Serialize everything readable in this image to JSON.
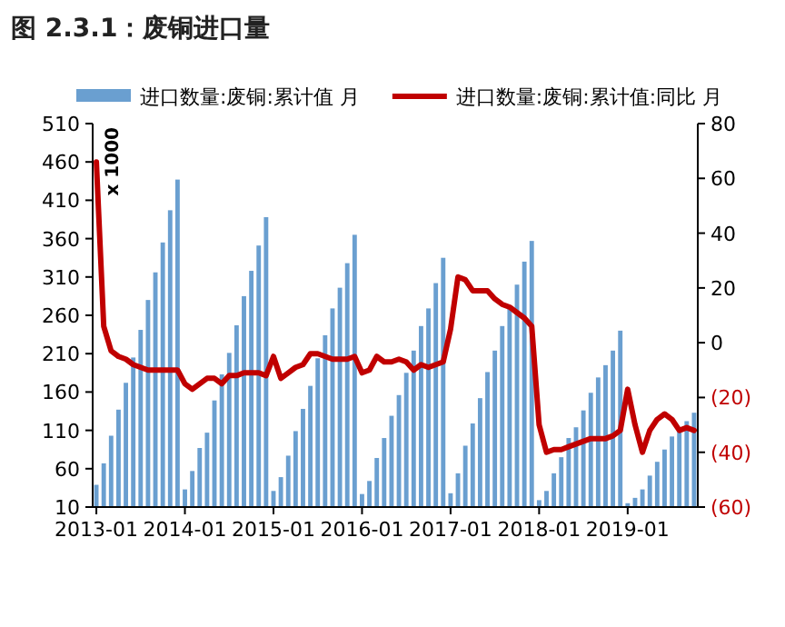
{
  "chart_data": {
    "type": "bar",
    "title": "图 2.3.1：废铜进口量",
    "ylabel": "x 1000",
    "categories": [
      "2013-01",
      null,
      null,
      null,
      null,
      null,
      null,
      null,
      null,
      null,
      null,
      null,
      "2014-01",
      null,
      null,
      null,
      null,
      null,
      null,
      null,
      null,
      null,
      null,
      null,
      "2015-01",
      null,
      null,
      null,
      null,
      null,
      null,
      null,
      null,
      null,
      null,
      null,
      "2016-01",
      null,
      null,
      null,
      null,
      null,
      null,
      null,
      null,
      null,
      null,
      null,
      "2017-01",
      null,
      null,
      null,
      null,
      null,
      null,
      null,
      null,
      null,
      null,
      null,
      "2018-01",
      null,
      null,
      null,
      null,
      null,
      null,
      null,
      null,
      null,
      null,
      null,
      "2019-01",
      null,
      null,
      null,
      null,
      null,
      null,
      null,
      null,
      null
    ],
    "series": [
      {
        "name": "进口数量:废铜:累计值 月",
        "color": "#6a9fd0",
        "values": [
          39,
          67,
          103,
          137,
          172,
          205,
          241,
          280,
          316,
          355,
          397,
          437,
          33,
          57,
          87,
          107,
          149,
          183,
          211,
          247,
          285,
          318,
          351,
          388,
          31,
          49,
          77,
          109,
          138,
          168,
          204,
          234,
          269,
          296,
          328,
          365,
          27,
          44,
          74,
          100,
          129,
          156,
          185,
          214,
          246,
          269,
          302,
          335,
          28,
          54,
          90,
          119,
          152,
          186,
          214,
          246,
          273,
          300,
          330,
          357,
          19,
          31,
          54,
          75,
          100,
          114,
          136,
          159,
          179,
          195,
          214,
          240,
          15,
          22,
          33,
          51,
          69,
          85,
          102,
          113,
          122,
          133
        ]
      },
      {
        "name": "进口数量:废铜:累计值:同比 月",
        "type": "line",
        "axis": "y2",
        "color": "#c00000",
        "values": [
          66,
          6,
          -3,
          -5,
          -6,
          -8,
          -9,
          -10,
          -10,
          -10,
          -10,
          -10,
          -15,
          -17,
          -15,
          -13,
          -13,
          -15,
          -12,
          -12,
          -11,
          -11,
          -11,
          -12,
          -5,
          -13,
          -11,
          -9,
          -8,
          -4,
          -4,
          -5,
          -6,
          -6,
          -6,
          -5,
          -11,
          -10,
          -5,
          -7,
          -7,
          -6,
          -7,
          -10,
          -8,
          -9,
          -8,
          -7,
          5,
          24,
          23,
          19,
          19,
          19,
          16,
          14,
          13,
          11,
          9,
          6,
          -30,
          -40,
          -39,
          -39,
          -38,
          -37,
          -36,
          -35,
          -35,
          -35,
          -34,
          -32,
          -17,
          -30,
          -40,
          -32,
          -28,
          -26,
          -28,
          -32,
          -31,
          -32
        ]
      }
    ],
    "ylim": [
      10,
      510
    ],
    "yticks": [
      10,
      60,
      110,
      160,
      210,
      260,
      310,
      360,
      410,
      460,
      510
    ],
    "y2lim": [
      -60,
      80
    ],
    "y2ticks": [
      80,
      60,
      40,
      20,
      0,
      {
        "value": -20,
        "label": "(20)"
      },
      {
        "value": -40,
        "label": "(40)"
      },
      {
        "value": -60,
        "label": "(60)"
      }
    ],
    "legend": "top",
    "grid": false
  }
}
